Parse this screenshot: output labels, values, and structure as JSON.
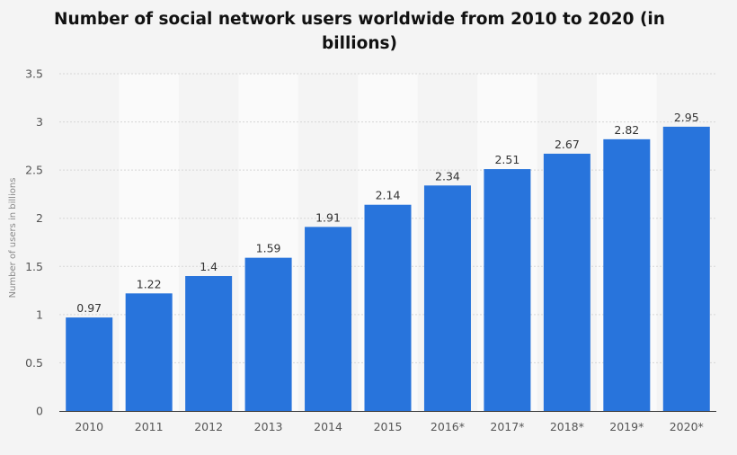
{
  "chart_data": {
    "type": "bar",
    "title": "Number of social network users worldwide from 2010 to 2020 (in billions)",
    "xlabel": "",
    "ylabel": "Number of users in billions",
    "categories": [
      "2010",
      "2011",
      "2012",
      "2013",
      "2014",
      "2015",
      "2016*",
      "2017*",
      "2018*",
      "2019*",
      "2020*"
    ],
    "values": [
      0.97,
      1.22,
      1.4,
      1.59,
      1.91,
      2.14,
      2.34,
      2.51,
      2.67,
      2.82,
      2.95
    ],
    "value_labels": [
      "0.97",
      "1.22",
      "1.4",
      "1.59",
      "1.91",
      "2.14",
      "2.34",
      "2.51",
      "2.67",
      "2.82",
      "2.95"
    ],
    "ylim": [
      0,
      3.5
    ],
    "yticks": [
      "0",
      "0.5",
      "1",
      "1.5",
      "2",
      "2.5",
      "3",
      "3.5"
    ],
    "grid": true,
    "legend": "none",
    "colors": {
      "bar": "#2874dc",
      "band": "#fafafa",
      "background": "#f4f4f4",
      "grid": "#d6d6d6"
    }
  }
}
